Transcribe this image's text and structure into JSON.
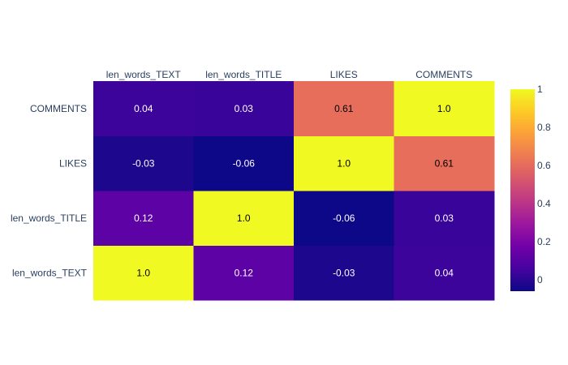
{
  "chart_data": {
    "type": "heatmap",
    "x_categories": [
      "len_words_TEXT",
      "len_words_TITLE",
      "LIKES",
      "COMMENTS"
    ],
    "y_categories": [
      "len_words_TEXT",
      "len_words_TITLE",
      "LIKES",
      "COMMENTS"
    ],
    "z": [
      [
        1.0,
        0.12,
        -0.03,
        0.04
      ],
      [
        0.12,
        1.0,
        -0.06,
        0.03
      ],
      [
        -0.03,
        -0.06,
        1.0,
        0.61
      ],
      [
        0.04,
        0.03,
        0.61,
        1.0
      ]
    ],
    "cell_labels": [
      [
        "1.0",
        "0.12",
        "-0.03",
        "0.04"
      ],
      [
        "0.12",
        "1.0",
        "-0.06",
        "0.03"
      ],
      [
        "-0.03",
        "-0.06",
        "1.0",
        "0.61"
      ],
      [
        "0.04",
        "0.03",
        "0.61",
        "1.0"
      ]
    ],
    "x_axis_side": "top",
    "colorscale_name": "Plasma",
    "zmin": -0.06,
    "zmax": 1.0,
    "colorbar": {
      "tickvals": [
        0,
        0.2,
        0.4,
        0.6,
        0.8,
        1
      ],
      "ticklabels": [
        "0",
        "0.2",
        "0.4",
        "0.6",
        "0.8",
        "1"
      ]
    },
    "title": "",
    "xlabel": "",
    "ylabel": ""
  },
  "colors": {
    "scale": [
      "#0d0887",
      "#46039f",
      "#7201a8",
      "#9c179e",
      "#bd3786",
      "#d8576b",
      "#ed7953",
      "#fb9f3a",
      "#fdca26",
      "#f0f921"
    ],
    "tick_text": "#2a3f5f",
    "label_on_dark": "#ffffff",
    "label_on_light": "#000000"
  }
}
